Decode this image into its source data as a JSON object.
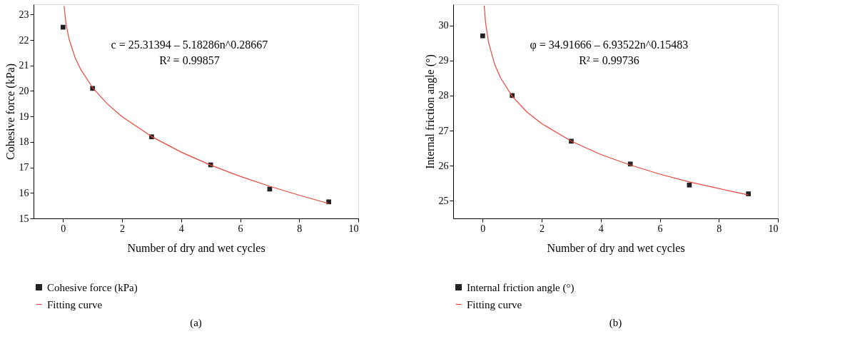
{
  "chart_data": [
    {
      "type": "scatter",
      "title": "(a)",
      "xlabel": "Number of dry and wet cycles",
      "ylabel": "Cohesive force (kPa)",
      "xlim": [
        -1,
        10
      ],
      "xticks": [
        0,
        2,
        4,
        6,
        8,
        10
      ],
      "ylim": [
        15,
        23.4
      ],
      "yticks": [
        15,
        16,
        17,
        18,
        19,
        20,
        21,
        22,
        23
      ],
      "grid": false,
      "legend": "bottom",
      "annotations": [
        "c = 25.31394 – 5.18286n^0.28667",
        "R² = 0.99857"
      ],
      "series": [
        {
          "name": "Cohesive force (kPa)",
          "marker": "square",
          "color": "#222222",
          "x": [
            0,
            1,
            3,
            5,
            7,
            9
          ],
          "values": [
            22.5,
            20.1,
            18.2,
            17.1,
            16.15,
            15.65
          ]
        },
        {
          "name": "Fitting curve",
          "type": "line",
          "color": "#e8463c",
          "x": [
            0.035,
            0.1,
            0.2,
            0.4,
            0.6,
            1,
            1.5,
            2,
            3,
            4,
            5,
            6,
            7,
            8,
            9
          ],
          "values": [
            23.33,
            22.63,
            22.05,
            21.33,
            20.84,
            20.13,
            19.49,
            18.99,
            18.21,
            17.6,
            17.09,
            16.65,
            16.26,
            15.91,
            15.58
          ]
        }
      ]
    },
    {
      "type": "scatter",
      "title": "(b)",
      "xlabel": "Number of dry and wet cycles",
      "ylabel": "Internal friction angle (°)",
      "xlim": [
        -1,
        10
      ],
      "xticks": [
        0,
        2,
        4,
        6,
        8,
        10
      ],
      "ylim": [
        24.5,
        30.6
      ],
      "yticks": [
        25,
        26,
        27,
        28,
        29,
        30
      ],
      "grid": false,
      "legend": "bottom",
      "annotations": [
        "φ = 34.91666 – 6.93522n^0.15483",
        "R² = 0.99736"
      ],
      "series": [
        {
          "name": "Internal friction angle (°)",
          "marker": "square",
          "color": "#222222",
          "x": [
            0,
            1,
            3,
            5,
            7,
            9
          ],
          "values": [
            29.7,
            28.0,
            26.7,
            26.05,
            25.45,
            25.2
          ]
        },
        {
          "name": "Fitting curve",
          "type": "line",
          "color": "#e8463c",
          "x": [
            0.05,
            0.1,
            0.2,
            0.4,
            0.6,
            1,
            1.5,
            2,
            3,
            4,
            5,
            6,
            7,
            8,
            9
          ],
          "values": [
            30.56,
            30.06,
            29.51,
            28.9,
            28.51,
            27.98,
            27.53,
            27.2,
            26.7,
            26.32,
            26.02,
            25.76,
            25.54,
            25.35,
            25.17
          ]
        }
      ]
    }
  ]
}
